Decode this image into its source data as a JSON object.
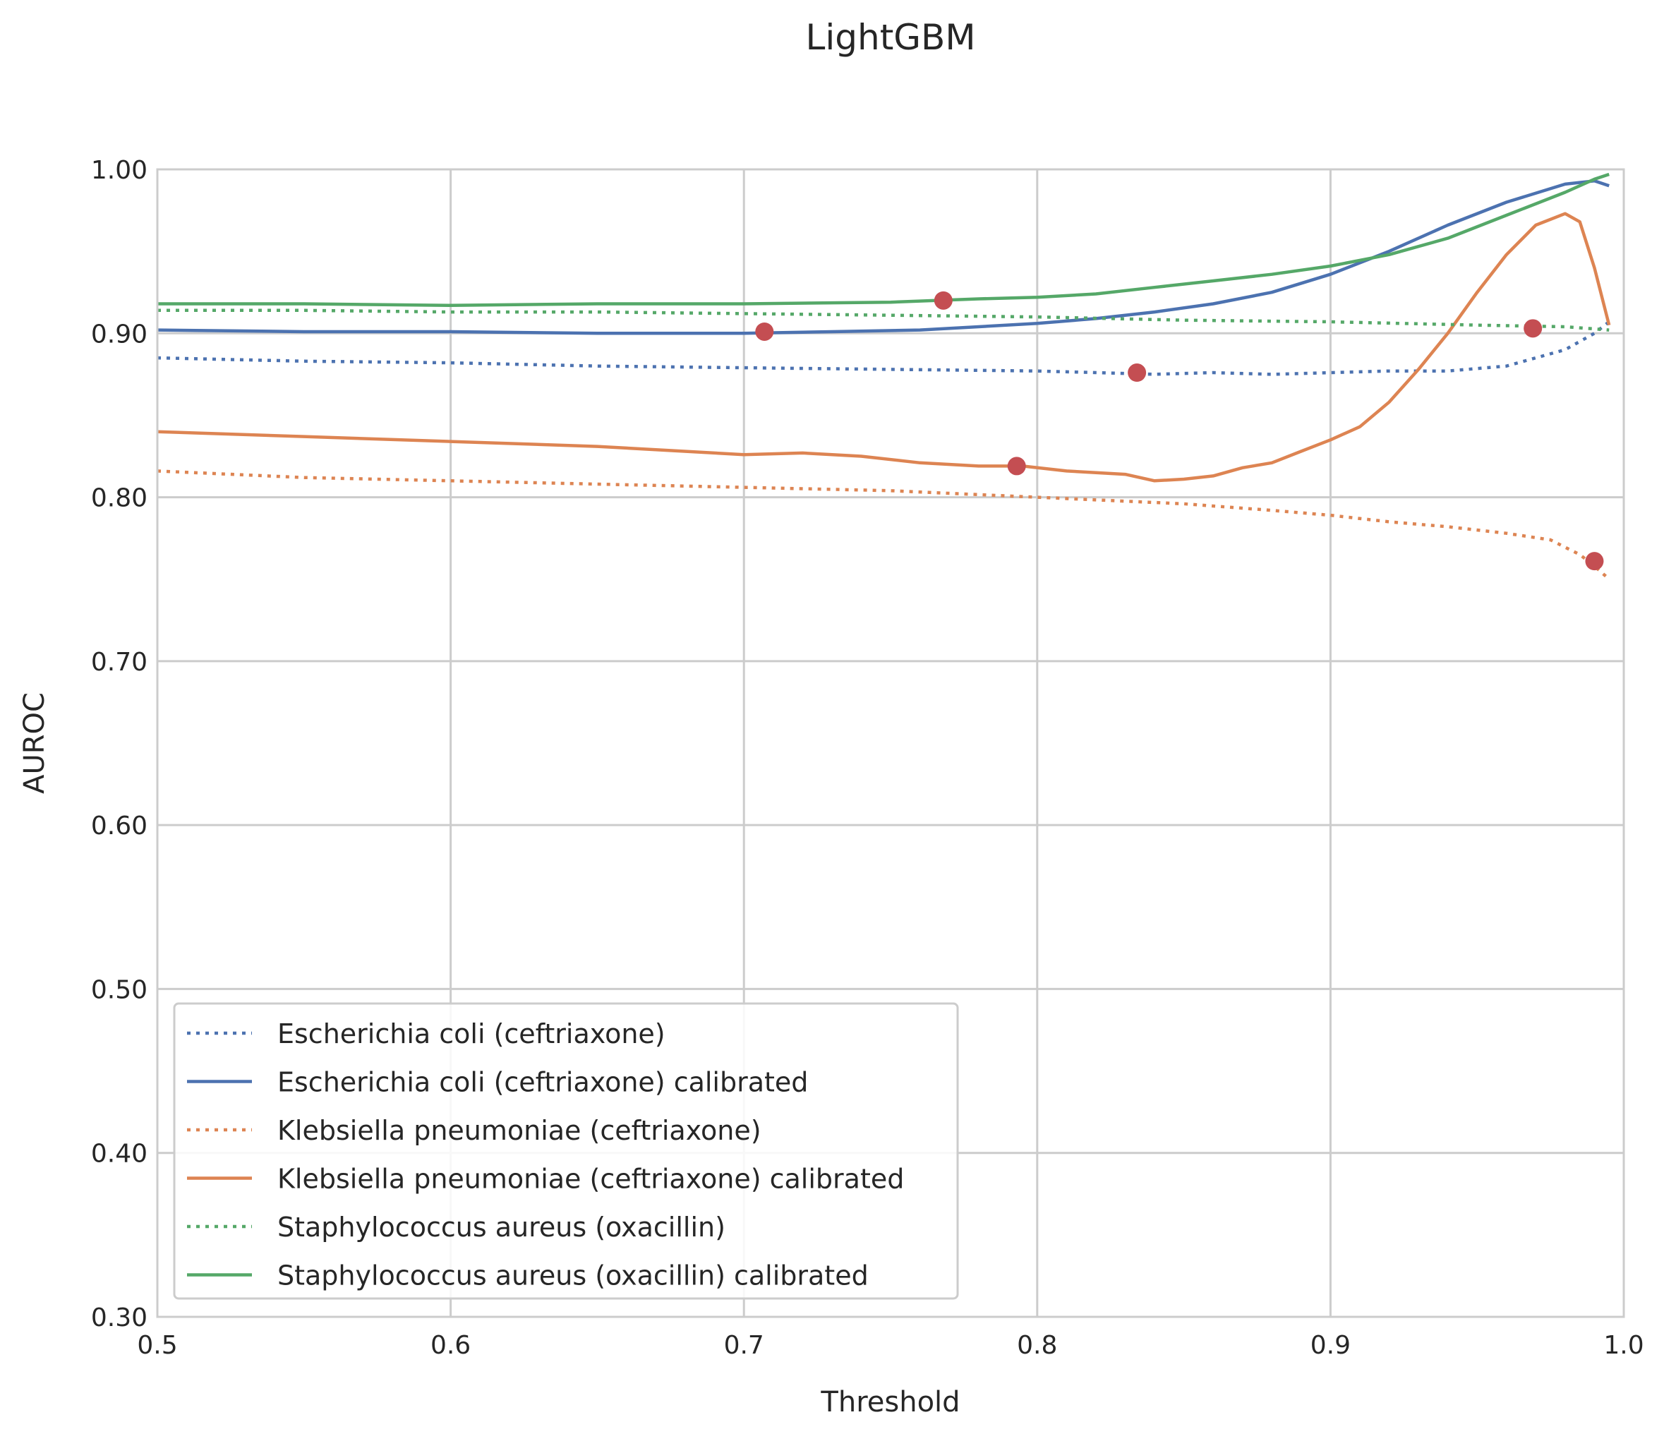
{
  "chart_data": {
    "type": "line",
    "title": "LightGBM",
    "xlabel": "Threshold",
    "ylabel": "AUROC",
    "xlim": [
      0.5,
      1.0
    ],
    "ylim": [
      0.3,
      1.0
    ],
    "xticks": [
      "0.5",
      "0.6",
      "0.7",
      "0.8",
      "0.9",
      "1.0"
    ],
    "yticks": [
      "0.30",
      "0.40",
      "0.50",
      "0.60",
      "0.70",
      "0.80",
      "0.90",
      "1.00"
    ],
    "grid": true,
    "legend_position": "lower-left",
    "series": [
      {
        "name": "Escherichia coli (ceftriaxone)",
        "color": "#4c72b0",
        "style": "dotted",
        "x": [
          0.5,
          0.55,
          0.6,
          0.65,
          0.7,
          0.75,
          0.8,
          0.82,
          0.84,
          0.86,
          0.88,
          0.9,
          0.92,
          0.94,
          0.96,
          0.98,
          0.99,
          0.995
        ],
        "y": [
          0.885,
          0.883,
          0.882,
          0.88,
          0.879,
          0.878,
          0.877,
          0.876,
          0.875,
          0.876,
          0.875,
          0.876,
          0.877,
          0.877,
          0.88,
          0.89,
          0.9,
          0.907
        ]
      },
      {
        "name": "Escherichia coli (ceftriaxone) calibrated",
        "color": "#4c72b0",
        "style": "solid",
        "x": [
          0.5,
          0.55,
          0.6,
          0.65,
          0.7,
          0.73,
          0.76,
          0.78,
          0.8,
          0.82,
          0.84,
          0.86,
          0.88,
          0.9,
          0.92,
          0.94,
          0.96,
          0.98,
          0.99,
          0.995
        ],
        "y": [
          0.902,
          0.901,
          0.901,
          0.9,
          0.9,
          0.901,
          0.902,
          0.904,
          0.906,
          0.909,
          0.913,
          0.918,
          0.925,
          0.936,
          0.95,
          0.966,
          0.98,
          0.991,
          0.993,
          0.99
        ]
      },
      {
        "name": "Klebsiella pneumoniae (ceftriaxone)",
        "color": "#dd8452",
        "style": "dotted",
        "x": [
          0.5,
          0.55,
          0.6,
          0.65,
          0.7,
          0.75,
          0.8,
          0.85,
          0.88,
          0.9,
          0.92,
          0.94,
          0.96,
          0.975,
          0.985,
          0.99,
          0.995
        ],
        "y": [
          0.816,
          0.812,
          0.81,
          0.808,
          0.806,
          0.804,
          0.8,
          0.796,
          0.792,
          0.789,
          0.785,
          0.782,
          0.778,
          0.774,
          0.765,
          0.758,
          0.75
        ]
      },
      {
        "name": "Klebsiella pneumoniae (ceftriaxone) calibrated",
        "color": "#dd8452",
        "style": "solid",
        "x": [
          0.5,
          0.55,
          0.6,
          0.65,
          0.7,
          0.72,
          0.74,
          0.76,
          0.78,
          0.795,
          0.81,
          0.82,
          0.83,
          0.84,
          0.85,
          0.86,
          0.87,
          0.88,
          0.89,
          0.9,
          0.91,
          0.92,
          0.93,
          0.94,
          0.95,
          0.96,
          0.97,
          0.98,
          0.985,
          0.99,
          0.995
        ],
        "y": [
          0.84,
          0.837,
          0.834,
          0.831,
          0.826,
          0.827,
          0.825,
          0.821,
          0.819,
          0.819,
          0.816,
          0.815,
          0.814,
          0.81,
          0.811,
          0.813,
          0.818,
          0.821,
          0.828,
          0.835,
          0.843,
          0.858,
          0.878,
          0.9,
          0.925,
          0.948,
          0.966,
          0.973,
          0.968,
          0.94,
          0.905
        ]
      },
      {
        "name": "Staphylococcus aureus (oxacillin)",
        "color": "#55a868",
        "style": "dotted",
        "x": [
          0.5,
          0.55,
          0.6,
          0.65,
          0.7,
          0.75,
          0.8,
          0.85,
          0.9,
          0.95,
          0.98,
          0.995
        ],
        "y": [
          0.914,
          0.914,
          0.913,
          0.913,
          0.912,
          0.911,
          0.91,
          0.908,
          0.907,
          0.905,
          0.904,
          0.902
        ]
      },
      {
        "name": "Staphylococcus aureus (oxacillin) calibrated",
        "color": "#55a868",
        "style": "solid",
        "x": [
          0.5,
          0.55,
          0.6,
          0.65,
          0.7,
          0.75,
          0.78,
          0.8,
          0.82,
          0.84,
          0.86,
          0.88,
          0.9,
          0.92,
          0.94,
          0.96,
          0.98,
          0.99,
          0.995
        ],
        "y": [
          0.918,
          0.918,
          0.917,
          0.918,
          0.918,
          0.919,
          0.921,
          0.922,
          0.924,
          0.928,
          0.932,
          0.936,
          0.941,
          0.948,
          0.958,
          0.972,
          0.986,
          0.994,
          0.997
        ]
      }
    ],
    "markers": {
      "color": "#c44e52",
      "points": [
        {
          "x": 0.707,
          "y": 0.901
        },
        {
          "x": 0.768,
          "y": 0.92
        },
        {
          "x": 0.793,
          "y": 0.819
        },
        {
          "x": 0.834,
          "y": 0.876
        },
        {
          "x": 0.969,
          "y": 0.903
        },
        {
          "x": 0.99,
          "y": 0.761
        }
      ]
    }
  }
}
